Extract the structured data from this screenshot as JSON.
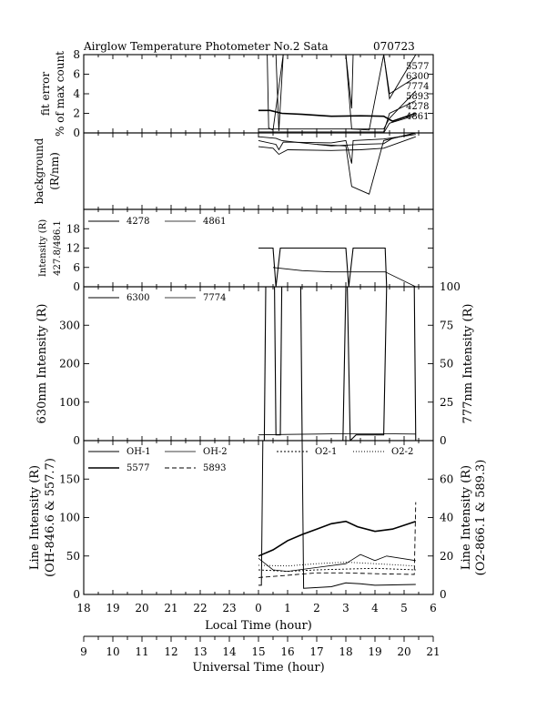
{
  "header": {
    "title": "Airglow Temperature Photometer No.2  Sata",
    "date": "070723"
  },
  "chart_data": {
    "type": "line",
    "x_axis": {
      "label": "Local Time (hour)",
      "range": [
        18,
        30
      ],
      "tick_labels": [
        "18",
        "19",
        "20",
        "21",
        "22",
        "23",
        "0",
        "1",
        "2",
        "3",
        "4",
        "5",
        "6"
      ]
    },
    "x_axis_secondary": {
      "label": "Universal Time (hour)",
      "range": [
        9,
        21
      ],
      "tick_labels": [
        "9",
        "10",
        "11",
        "12",
        "13",
        "14",
        "15",
        "16",
        "17",
        "18",
        "19",
        "20",
        "21"
      ]
    },
    "panels": [
      {
        "id": "fit",
        "ylabel": [
          "fit error",
          "% of max count"
        ],
        "ylim": [
          0,
          8
        ],
        "yticks": [
          "0",
          "2",
          "4",
          "6",
          "8"
        ],
        "labels": [
          "5577",
          "6300",
          "7774",
          "5893",
          "4278",
          "4861"
        ],
        "series": [
          {
            "name": "5577",
            "width": 1.6,
            "points": [
              [
                24.0,
                2.3
              ],
              [
                24.4,
                2.3
              ],
              [
                24.8,
                2.0
              ],
              [
                25.5,
                1.9
              ],
              [
                26.5,
                1.7
              ],
              [
                27.5,
                1.75
              ],
              [
                28.3,
                1.7
              ],
              [
                28.6,
                1.2
              ],
              [
                29.4,
                2.0
              ]
            ]
          },
          {
            "name": "6300",
            "width": 0.9,
            "points": [
              [
                24.0,
                8.0
              ],
              [
                24.6,
                8.0
              ],
              [
                24.7,
                0.2
              ],
              [
                24.85,
                8.0
              ],
              [
                26.5,
                8.0
              ],
              [
                27.0,
                8.0
              ],
              [
                27.2,
                2.5
              ],
              [
                27.25,
                8.0
              ],
              [
                28.3,
                8.0
              ],
              [
                28.5,
                3.5
              ],
              [
                29.4,
                8.0
              ]
            ]
          },
          {
            "name": "7774",
            "width": 0.9,
            "points": [
              [
                24.0,
                8.0
              ],
              [
                24.3,
                8.0
              ],
              [
                24.35,
                0.5
              ],
              [
                24.5,
                0.3
              ],
              [
                24.85,
                8.0
              ],
              [
                27.0,
                8.0
              ],
              [
                27.2,
                0.4
              ],
              [
                27.8,
                0.3
              ],
              [
                28.3,
                8.0
              ],
              [
                28.5,
                4.0
              ],
              [
                29.4,
                5.7
              ]
            ]
          },
          {
            "name": "5893",
            "width": 0.9,
            "points": [
              [
                24.0,
                0.4
              ],
              [
                28.3,
                0.4
              ],
              [
                28.5,
                1.5
              ],
              [
                29.4,
                4.3
              ]
            ]
          },
          {
            "name": "4278",
            "width": 0.9,
            "points": [
              [
                24.0,
                0.1
              ],
              [
                28.3,
                0.1
              ],
              [
                28.5,
                2.0
              ],
              [
                29.4,
                3.3
              ]
            ]
          },
          {
            "name": "4861",
            "width": 0.9,
            "points": [
              [
                24.0,
                0.0
              ],
              [
                28.3,
                0.0
              ],
              [
                28.5,
                1.0
              ],
              [
                29.4,
                1.8
              ]
            ]
          }
        ]
      },
      {
        "id": "background",
        "ylabel": [
          "background",
          "(R/nm)"
        ],
        "ylim": [
          0,
          1
        ],
        "yticks": [],
        "series": [
          {
            "name": "a",
            "width": 0.9,
            "points": [
              [
                24.0,
                0.95
              ],
              [
                24.6,
                0.93
              ],
              [
                24.8,
                0.9
              ],
              [
                25.5,
                0.87
              ],
              [
                26.5,
                0.83
              ],
              [
                27.5,
                0.85
              ],
              [
                28.3,
                0.86
              ],
              [
                28.6,
                0.93
              ],
              [
                29.4,
                1.0
              ]
            ]
          },
          {
            "name": "b",
            "width": 0.9,
            "points": [
              [
                24.0,
                0.9
              ],
              [
                24.6,
                0.85
              ],
              [
                24.7,
                0.78
              ],
              [
                24.85,
                0.88
              ],
              [
                26.5,
                0.87
              ],
              [
                27.0,
                0.9
              ],
              [
                27.2,
                0.6
              ],
              [
                27.25,
                0.9
              ],
              [
                28.3,
                0.92
              ],
              [
                29.4,
                0.98
              ]
            ]
          },
          {
            "name": "c",
            "width": 0.9,
            "points": [
              [
                24.0,
                0.82
              ],
              [
                24.5,
                0.8
              ],
              [
                24.7,
                0.72
              ],
              [
                25.0,
                0.78
              ],
              [
                26.5,
                0.77
              ],
              [
                27.5,
                0.78
              ],
              [
                28.3,
                0.8
              ],
              [
                29.4,
                0.95
              ]
            ]
          },
          {
            "name": "d",
            "width": 0.9,
            "points": [
              [
                26.0,
                0.85
              ],
              [
                27.0,
                0.83
              ],
              [
                27.2,
                0.3
              ],
              [
                27.8,
                0.2
              ],
              [
                28.3,
                0.9
              ],
              [
                29.4,
                1.0
              ]
            ]
          }
        ]
      },
      {
        "id": "intensity_blue",
        "ylabel": [
          "Intensity (R)",
          "427.8/486.1"
        ],
        "ylim": [
          0,
          24
        ],
        "yticks": [
          "0",
          "6",
          "12",
          "18"
        ],
        "legend": [
          "4278",
          "4861"
        ],
        "series": [
          {
            "name": "4278",
            "width": 1.1,
            "points": [
              [
                24.0,
                12
              ],
              [
                24.5,
                12
              ],
              [
                24.6,
                0
              ],
              [
                24.75,
                12
              ],
              [
                27.0,
                12
              ],
              [
                27.1,
                0
              ],
              [
                27.25,
                12
              ],
              [
                28.35,
                12
              ],
              [
                28.4,
                0
              ],
              [
                29.4,
                0
              ]
            ]
          },
          {
            "name": "4861",
            "width": 0.8,
            "points": [
              [
                24.5,
                6
              ],
              [
                25.5,
                5
              ],
              [
                26.5,
                4.6
              ],
              [
                28.0,
                4.6
              ],
              [
                28.35,
                4.6
              ],
              [
                29.4,
                0
              ]
            ]
          }
        ]
      },
      {
        "id": "oi_red",
        "ylabel": [
          "630nm Intensity (R)"
        ],
        "ylabel_right": [
          "777nm Intensity (R)"
        ],
        "ylim": [
          0,
          400
        ],
        "yticks": [
          "0",
          "100",
          "200",
          "300"
        ],
        "ylim_right": [
          0,
          100
        ],
        "yticks_right": [
          "0",
          "25",
          "50",
          "75",
          "100"
        ],
        "legend": [
          "6300",
          "7774"
        ],
        "series": [
          {
            "name": "6300",
            "width": 1.1,
            "points": [
              [
                24.0,
                0
              ],
              [
                24.2,
                0
              ],
              [
                24.25,
                400
              ],
              [
                24.55,
                400
              ],
              [
                24.6,
                15
              ],
              [
                24.75,
                15
              ],
              [
                24.8,
                400
              ],
              [
                25.45,
                400
              ],
              [
                25.5,
                0
              ],
              [
                26.9,
                0
              ],
              [
                27.0,
                400
              ],
              [
                27.05,
                400
              ],
              [
                27.15,
                0
              ],
              [
                27.35,
                15
              ],
              [
                28.3,
                15
              ],
              [
                28.4,
                400
              ],
              [
                29.35,
                400
              ],
              [
                29.4,
                0
              ]
            ]
          },
          {
            "name": "7774",
            "width": 0.8,
            "points": [
              [
                24.0,
                15
              ],
              [
                25.0,
                16
              ],
              [
                26.0,
                17
              ],
              [
                27.0,
                18
              ],
              [
                28.0,
                18
              ],
              [
                29.4,
                17
              ]
            ]
          }
        ]
      },
      {
        "id": "oh_o2",
        "ylabel": [
          "Line Intensity (R)",
          "(OH-846.6 & 557.7)"
        ],
        "ylabel_right": [
          "Line Intensity (R)",
          "(O2-866.1 & 589.3)"
        ],
        "ylim": [
          0,
          200
        ],
        "yticks": [
          "0",
          "50",
          "100",
          "150"
        ],
        "ylim_right": [
          0,
          80
        ],
        "yticks_right": [
          "0",
          "20",
          "40",
          "60"
        ],
        "legend": [
          "OH-1",
          "OH-2",
          "O2-1",
          "O2-2",
          "5577",
          "5893"
        ],
        "series": [
          {
            "name": "OH-1",
            "width": 1.0,
            "points": [
              [
                24.0,
                12
              ],
              [
                24.1,
                12
              ],
              [
                24.15,
                200
              ],
              [
                25.5,
                200
              ],
              [
                25.55,
                8
              ],
              [
                26.5,
                10
              ],
              [
                27.0,
                15
              ],
              [
                27.5,
                14
              ],
              [
                28.0,
                12
              ],
              [
                29.4,
                13
              ]
            ]
          },
          {
            "name": "OH-2",
            "width": 0.8,
            "points": [
              [
                24.0,
                47
              ],
              [
                24.5,
                32
              ],
              [
                25.0,
                30
              ],
              [
                26.0,
                35
              ],
              [
                27.0,
                40
              ],
              [
                27.5,
                52
              ],
              [
                28.0,
                44
              ],
              [
                28.4,
                50
              ],
              [
                29.4,
                44
              ]
            ]
          },
          {
            "name": "O2-1",
            "width": 0.9,
            "dash": "2,2",
            "points": [
              [
                24.0,
                32
              ],
              [
                25.0,
                30
              ],
              [
                26.0,
                32
              ],
              [
                27.0,
                33
              ],
              [
                28.0,
                34
              ],
              [
                29.4,
                32
              ]
            ]
          },
          {
            "name": "O2-2",
            "width": 0.9,
            "dash": "1,2",
            "points": [
              [
                24.0,
                38
              ],
              [
                25.0,
                37
              ],
              [
                26.0,
                40
              ],
              [
                27.0,
                42
              ],
              [
                28.0,
                40
              ],
              [
                29.4,
                37
              ]
            ]
          },
          {
            "name": "5577",
            "width": 1.6,
            "points": [
              [
                24.0,
                50
              ],
              [
                24.5,
                58
              ],
              [
                25.0,
                70
              ],
              [
                25.5,
                78
              ],
              [
                26.0,
                85
              ],
              [
                26.5,
                92
              ],
              [
                27.0,
                95
              ],
              [
                27.4,
                88
              ],
              [
                28.0,
                82
              ],
              [
                28.6,
                85
              ],
              [
                29.4,
                95
              ]
            ]
          },
          {
            "name": "5893",
            "width": 0.9,
            "dash": "5,3",
            "points": [
              [
                24.0,
                22
              ],
              [
                25.0,
                25
              ],
              [
                26.0,
                28
              ],
              [
                27.0,
                28
              ],
              [
                28.0,
                27
              ],
              [
                29.35,
                26
              ],
              [
                29.4,
                120
              ]
            ]
          }
        ]
      }
    ]
  }
}
